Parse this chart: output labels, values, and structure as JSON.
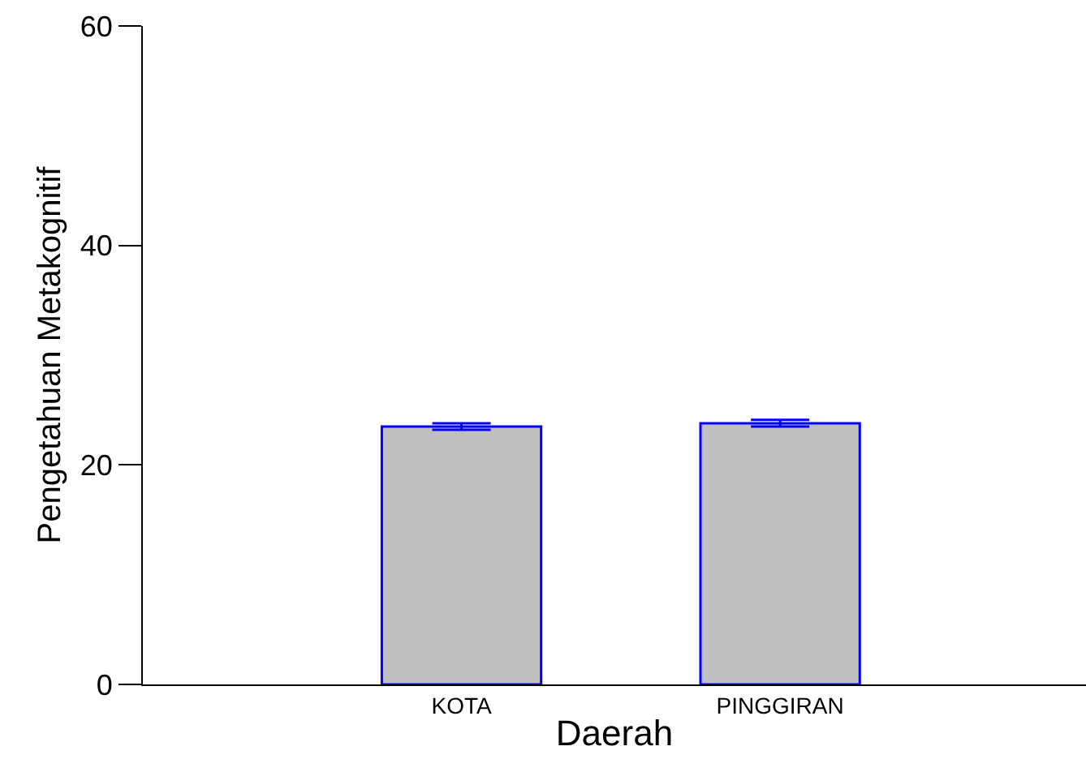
{
  "chart_data": {
    "type": "bar",
    "xlabel": "Daerah",
    "ylabel": "Pengetahuan Metakognitif",
    "categories": [
      "KOTA",
      "PINGGIRAN"
    ],
    "values": [
      23.5,
      23.8
    ],
    "errors": [
      0.3,
      0.3
    ],
    "color": "#c0c0c0",
    "ylim": [
      0,
      60
    ],
    "yticks": [
      0,
      20,
      40,
      60
    ],
    "grid": false
  }
}
